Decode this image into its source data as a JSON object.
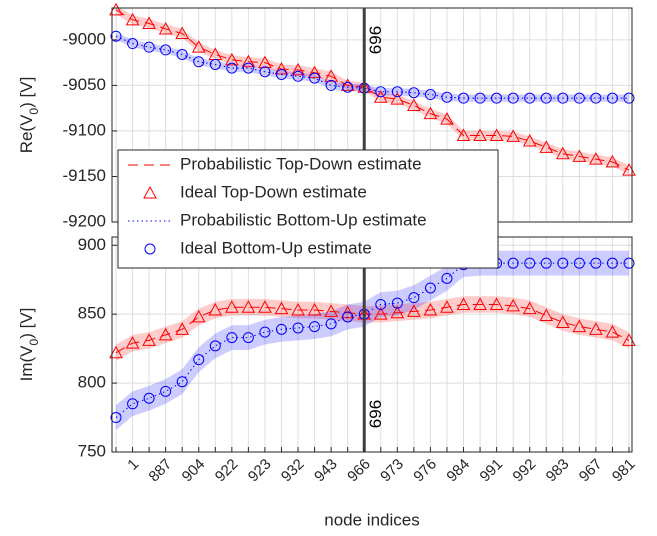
{
  "chart_data": [
    {
      "type": "line",
      "ylabel_parts": [
        "Re(V",
        "0",
        ") [V]"
      ],
      "ylim": [
        -9200,
        -8965
      ],
      "yticks": [
        -9200,
        -9150,
        -9100,
        -9050,
        -9000
      ],
      "grid": true,
      "vline": {
        "label": "969",
        "at_index": 15
      },
      "series": [
        {
          "name": "Probabilistic Top-Down estimate",
          "color": "#ff0000",
          "style": "dashed",
          "band": 5,
          "values": [
            -8967,
            -8978,
            -8982,
            -8988,
            -8993,
            -9008,
            -9016,
            -9022,
            -9024,
            -9025,
            -9032,
            -9033,
            -9036,
            -9040,
            -9050,
            -9052,
            -9063,
            -9065,
            -9072,
            -9081,
            -9087,
            -9105,
            -9105,
            -9105,
            -9106,
            -9111,
            -9118,
            -9125,
            -9128,
            -9131,
            -9134,
            -9143
          ]
        },
        {
          "name": "Ideal Top-Down estimate",
          "color": "#ff0000",
          "marker": "triangle",
          "values": [
            -8967,
            -8978,
            -8982,
            -8988,
            -8993,
            -9008,
            -9016,
            -9022,
            -9024,
            -9025,
            -9032,
            -9033,
            -9036,
            -9040,
            -9050,
            -9052,
            -9063,
            -9065,
            -9072,
            -9081,
            -9087,
            -9105,
            -9105,
            -9105,
            -9106,
            -9111,
            -9118,
            -9125,
            -9128,
            -9131,
            -9134,
            -9143
          ]
        },
        {
          "name": "Probabilistic Bottom-Up estimate",
          "color": "#0000ff",
          "style": "dotted",
          "band": 4,
          "values": [
            -8996,
            -9004,
            -9008,
            -9011,
            -9016,
            -9024,
            -9027,
            -9031,
            -9031,
            -9035,
            -9038,
            -9040,
            -9042,
            -9050,
            -9052,
            -9053,
            -9057,
            -9057,
            -9058,
            -9060,
            -9063,
            -9064,
            -9064,
            -9064,
            -9064,
            -9064,
            -9064,
            -9064,
            -9064,
            -9064,
            -9064,
            -9064
          ]
        },
        {
          "name": "Ideal Bottom-Up estimate",
          "color": "#0000ff",
          "marker": "circle",
          "values": [
            -8996,
            -9004,
            -9008,
            -9011,
            -9016,
            -9024,
            -9027,
            -9031,
            -9031,
            -9035,
            -9038,
            -9040,
            -9042,
            -9050,
            -9052,
            -9053,
            -9057,
            -9057,
            -9058,
            -9060,
            -9063,
            -9064,
            -9064,
            -9064,
            -9064,
            -9064,
            -9064,
            -9064,
            -9064,
            -9064,
            -9064,
            -9064
          ]
        }
      ]
    },
    {
      "type": "line",
      "ylabel_parts": [
        "Im(V",
        "0",
        ") [V]"
      ],
      "xlabel": "node indices",
      "ylim": [
        750,
        906
      ],
      "yticks": [
        750,
        800,
        850,
        900
      ],
      "grid": true,
      "vline": {
        "label": "969",
        "at_index": 15
      },
      "categories": [
        null,
        "1",
        null,
        "887",
        null,
        "904",
        null,
        "922",
        null,
        "923",
        null,
        "932",
        null,
        "943",
        null,
        "966",
        null,
        "973",
        null,
        "976",
        null,
        "984",
        null,
        "991",
        null,
        "992",
        null,
        "983",
        null,
        "967",
        null,
        "981"
      ],
      "series": [
        {
          "color": "#ff0000",
          "style": "dashed",
          "band": 6,
          "values": [
            822,
            829,
            831,
            835,
            839,
            848,
            853,
            855,
            855,
            855,
            854,
            853,
            853,
            852,
            851,
            850,
            850,
            851,
            852,
            853,
            855,
            857,
            857,
            857,
            856,
            854,
            849,
            844,
            841,
            839,
            837,
            831
          ]
        },
        {
          "color": "#ff0000",
          "marker": "triangle",
          "values": [
            822,
            829,
            831,
            835,
            839,
            848,
            853,
            855,
            855,
            855,
            854,
            853,
            853,
            852,
            851,
            850,
            850,
            851,
            852,
            853,
            855,
            857,
            857,
            857,
            856,
            854,
            849,
            844,
            841,
            839,
            837,
            831
          ]
        },
        {
          "color": "#0000ff",
          "style": "dotted",
          "band": 9,
          "values": [
            775,
            785,
            789,
            794,
            801,
            817,
            827,
            833,
            833,
            837,
            839,
            840,
            841,
            843,
            848,
            850,
            857,
            858,
            862,
            869,
            876,
            886,
            887,
            887,
            887,
            887,
            887,
            887,
            887,
            887,
            887,
            887
          ]
        },
        {
          "color": "#0000ff",
          "marker": "circle",
          "values": [
            775,
            785,
            789,
            794,
            801,
            817,
            827,
            833,
            833,
            837,
            839,
            840,
            841,
            843,
            848,
            850,
            857,
            858,
            862,
            869,
            876,
            886,
            887,
            887,
            887,
            887,
            887,
            887,
            887,
            887,
            887,
            887
          ]
        }
      ]
    }
  ]
}
